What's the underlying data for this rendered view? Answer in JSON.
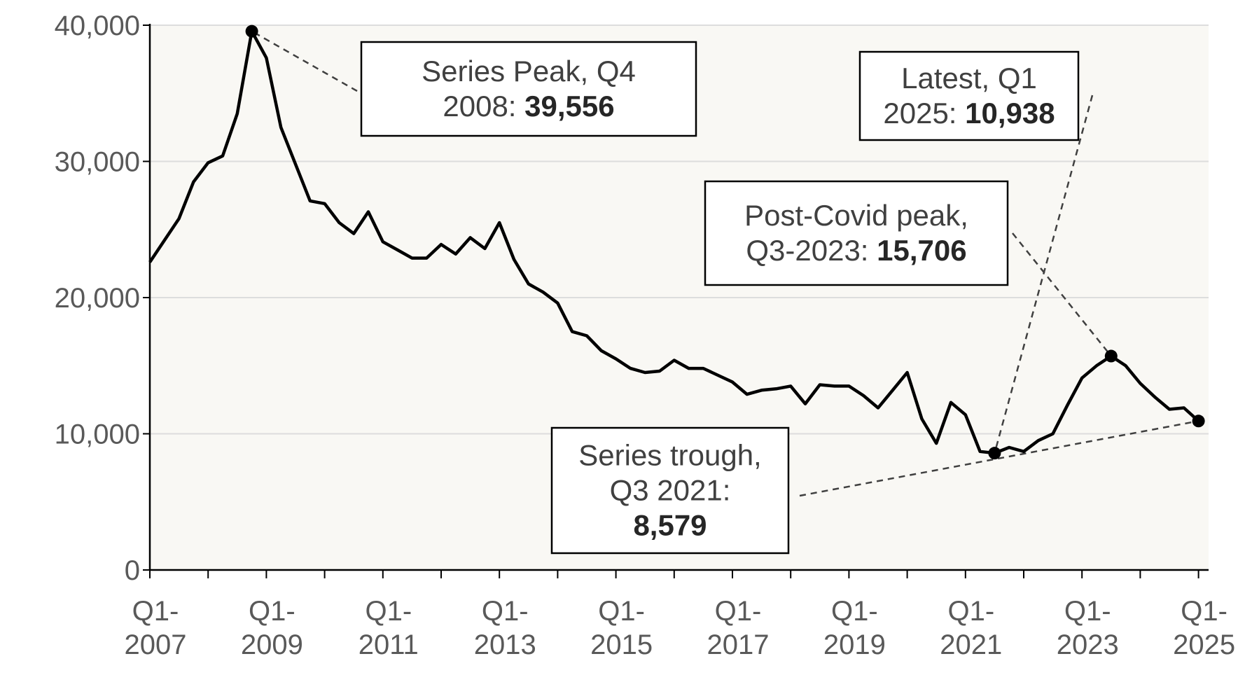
{
  "chart_data": {
    "type": "line",
    "title": "",
    "xlabel": "",
    "ylabel": "",
    "ylim": [
      0,
      40000
    ],
    "yticks": [
      "0",
      "10,000",
      "20,000",
      "30,000",
      "40,000"
    ],
    "xticks": [
      {
        "q": "Q1-",
        "year": "2007"
      },
      {
        "q": "Q1-",
        "year": "2009"
      },
      {
        "q": "Q1-",
        "year": "2011"
      },
      {
        "q": "Q1-",
        "year": "2013"
      },
      {
        "q": "Q1-",
        "year": "2015"
      },
      {
        "q": "Q1-",
        "year": "2017"
      },
      {
        "q": "Q1-",
        "year": "2019"
      },
      {
        "q": "Q1-",
        "year": "2021"
      },
      {
        "q": "Q1-",
        "year": "2023"
      },
      {
        "q": "Q1-",
        "year": "2025"
      }
    ],
    "grid": true,
    "series": [
      {
        "start": "Q1 2007",
        "frequency": "quarterly",
        "values": [
          22600,
          24200,
          25800,
          28500,
          29900,
          30400,
          33500,
          39556,
          37600,
          32500,
          29800,
          27100,
          26900,
          25500,
          24700,
          26300,
          24100,
          23500,
          22900,
          22900,
          23900,
          23200,
          24400,
          23600,
          25500,
          22800,
          21000,
          20400,
          19600,
          17500,
          17200,
          16100,
          15500,
          14800,
          14500,
          14600,
          15400,
          14800,
          14800,
          14300,
          13800,
          12900,
          13200,
          13300,
          13500,
          12200,
          13600,
          13500,
          13500,
          12800,
          11900,
          13200,
          14500,
          11100,
          9300,
          12300,
          11400,
          8700,
          8579,
          9000,
          8700,
          9500,
          10000,
          12100,
          14100,
          15000,
          15706,
          15000,
          13700,
          12700,
          11800,
          11900,
          10938
        ]
      }
    ],
    "markers": [
      {
        "label": "Series Peak, Q4 2008",
        "value": 39556
      },
      {
        "label": "Series trough, Q3 2021",
        "value": 8579
      },
      {
        "label": "Post-Covid peak, Q3-2023",
        "value": 15706
      },
      {
        "label": "Latest, Q1 2025",
        "value": 10938
      }
    ],
    "annotations": [
      {
        "lines": [
          [
            "Series Peak, Q4",
            ""
          ],
          [
            "2008: ",
            "39,556"
          ]
        ]
      },
      {
        "lines": [
          [
            "Latest, Q1",
            ""
          ],
          [
            "2025: ",
            "10,938"
          ]
        ]
      },
      {
        "lines": [
          [
            "Post-Covid peak,",
            ""
          ],
          [
            "Q3-2023: ",
            "15,706"
          ]
        ]
      },
      {
        "lines": [
          [
            "Series trough,",
            ""
          ],
          [
            "Q3 2021:",
            ""
          ],
          [
            "",
            "8,579"
          ]
        ]
      }
    ],
    "colors": {
      "line": "#000000",
      "plot_bg": "#f9f8f4",
      "grid": "#dddddd",
      "axis": "#000000",
      "leader": "#404040"
    }
  }
}
